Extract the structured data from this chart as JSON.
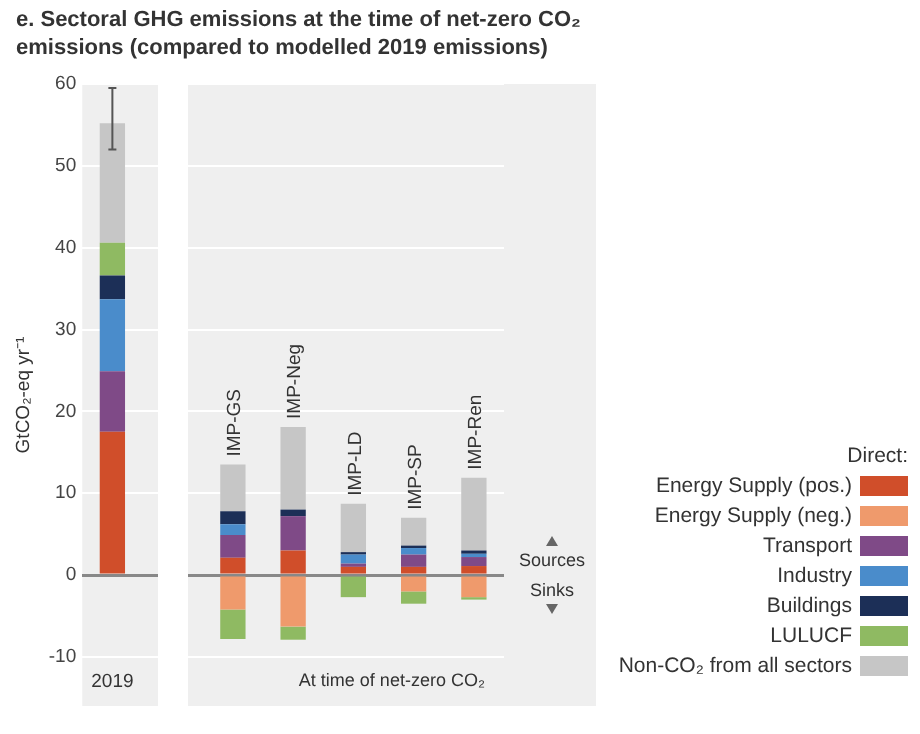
{
  "chart_data": {
    "type": "bar",
    "stacked": true,
    "title": "e. Sectoral GHG emissions at the time of net-zero CO₂ emissions (compared to modelled 2019 emissions)",
    "ylabel": "GtCO₂-eq yr⁻¹",
    "legend_title": "Direct:",
    "categories": [
      "2019",
      null,
      "IMP-GS",
      "IMP-Neg",
      "IMP-LD",
      "IMP-SP",
      "IMP-Ren"
    ],
    "series": [
      {
        "name": "Energy Supply (pos.)",
        "color": "#d04e2a",
        "values": [
          17.5,
          null,
          2.1,
          3.0,
          1.0,
          1.0,
          1.1
        ]
      },
      {
        "name": "Energy Supply (neg.)",
        "color": "#ef9a6c",
        "values": [
          null,
          null,
          -4.2,
          -6.3,
          null,
          -2.0,
          -2.7
        ]
      },
      {
        "name": "Transport",
        "color": "#7f4a87",
        "values": [
          7.4,
          null,
          2.8,
          4.2,
          0.4,
          1.5,
          1.1
        ]
      },
      {
        "name": "Industry",
        "color": "#4a8ccb",
        "values": [
          8.8,
          null,
          1.3,
          null,
          1.1,
          0.8,
          0.4
        ]
      },
      {
        "name": "Buildings",
        "color": "#1c2f57",
        "values": [
          2.9,
          null,
          1.6,
          0.8,
          0.3,
          0.3,
          0.4
        ]
      },
      {
        "name": "LULUCF",
        "color": "#8fba62",
        "values": [
          4.0,
          null,
          -3.6,
          -1.6,
          -2.7,
          -1.5,
          -0.3
        ]
      },
      {
        "name": "Non-CO₂ from all sectors",
        "color": "#c6c6c6",
        "values": [
          14.6,
          null,
          5.7,
          10.1,
          5.9,
          3.4,
          8.9
        ],
        "errors": [
          [
            52,
            59.5
          ],
          null,
          null,
          null,
          null,
          null,
          null
        ]
      }
    ],
    "ylim": [
      -16,
      60
    ],
    "yticks": [
      -10,
      0,
      10,
      20,
      30,
      40,
      50,
      60
    ],
    "grid": "y",
    "legend": "right",
    "annotations": [
      "At time of net-zero CO₂",
      "Sources",
      "Sinks"
    ]
  }
}
